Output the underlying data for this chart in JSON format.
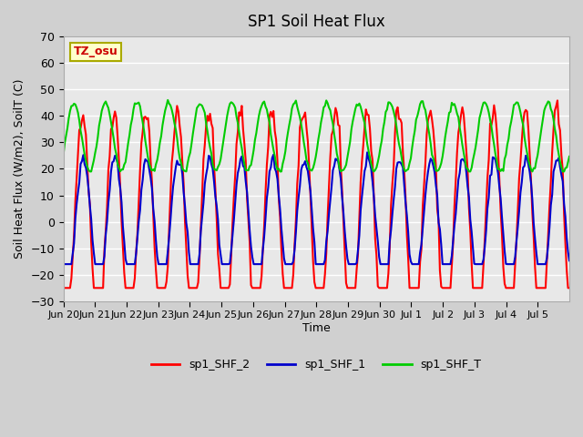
{
  "title": "SP1 Soil Heat Flux",
  "ylabel": "Soil Heat Flux (W/m2), SoilT (C)",
  "xlabel": "Time",
  "ylim": [
    -30,
    70
  ],
  "bg_color": "#e8e8e8",
  "grid_color": "#ffffff",
  "tz_label": "TZ_osu",
  "tz_box_color": "#ffffcc",
  "tz_text_color": "#cc0000",
  "legend_entries": [
    "sp1_SHF_2",
    "sp1_SHF_1",
    "sp1_SHF_T"
  ],
  "legend_colors": [
    "#ff0000",
    "#0000cc",
    "#00cc00"
  ],
  "line_width": 1.5,
  "x_tick_labels": [
    "Jun 20",
    "Jun 21",
    "Jun 22",
    "Jun 23",
    "Jun 24",
    "Jun 25",
    "Jun 26",
    "Jun 27",
    "Jun 28",
    "Jun 29",
    "Jun 30",
    "Jul 1",
    "Jul 2",
    "Jul 3",
    "Jul 4",
    "Jul 5"
  ],
  "yticks": [
    -30,
    -20,
    -10,
    0,
    10,
    20,
    30,
    40,
    50,
    60,
    70
  ],
  "n_days": 16
}
